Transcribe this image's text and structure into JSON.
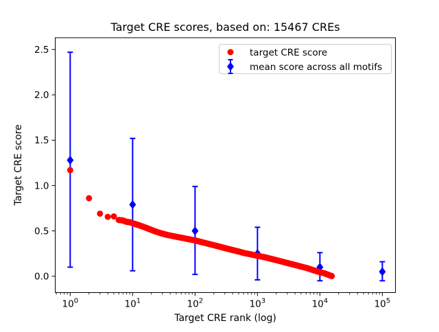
{
  "chart_data": {
    "type": "scatter",
    "title": "Target CRE scores, based on: 15467 CREs",
    "xlabel": "Target CRE rank (log)",
    "ylabel": "Target CRE score",
    "x_scale": "log",
    "xlim_log10": [
      -0.24,
      5.21
    ],
    "ylim": [
      -0.18,
      2.63
    ],
    "x_ticks": [
      1,
      10,
      100,
      1000,
      10000,
      100000
    ],
    "y_ticks": [
      0.0,
      0.5,
      1.0,
      1.5,
      2.0,
      2.5
    ],
    "grid": false,
    "legend": {
      "position": "upper right",
      "items": [
        {
          "label": "target CRE score",
          "marker": "circle",
          "color": "#ff0000"
        },
        {
          "label": "mean score across all motifs",
          "marker": "diamond-errorbar",
          "color": "#0000ff"
        }
      ]
    },
    "series": [
      {
        "name": "mean score across all motifs",
        "type": "errorbar",
        "marker": "diamond",
        "color": "#0000ff",
        "points": [
          {
            "x": 1,
            "y": 1.28,
            "lo": 0.1,
            "hi": 2.47
          },
          {
            "x": 10,
            "y": 0.79,
            "lo": 0.06,
            "hi": 1.52
          },
          {
            "x": 100,
            "y": 0.5,
            "lo": 0.02,
            "hi": 0.99
          },
          {
            "x": 1000,
            "y": 0.25,
            "lo": -0.04,
            "hi": 0.54
          },
          {
            "x": 10000,
            "y": 0.1,
            "lo": -0.05,
            "hi": 0.26
          },
          {
            "x": 100000,
            "y": 0.05,
            "lo": -0.05,
            "hi": 0.16
          }
        ]
      },
      {
        "name": "target CRE score",
        "type": "scatter",
        "marker": "circle",
        "color": "#ff0000",
        "band_from_rank": 6,
        "points": [
          [
            1,
            1.17
          ],
          [
            2,
            0.86
          ],
          [
            3,
            0.69
          ],
          [
            4,
            0.655
          ],
          [
            5,
            0.66
          ],
          [
            6,
            0.62
          ],
          [
            7,
            0.615
          ],
          [
            8,
            0.6
          ],
          [
            9,
            0.595
          ],
          [
            10,
            0.585
          ],
          [
            13,
            0.56
          ],
          [
            17,
            0.53
          ],
          [
            22,
            0.5
          ],
          [
            28,
            0.475
          ],
          [
            36,
            0.455
          ],
          [
            46,
            0.44
          ],
          [
            60,
            0.425
          ],
          [
            77,
            0.41
          ],
          [
            100,
            0.395
          ],
          [
            130,
            0.375
          ],
          [
            170,
            0.355
          ],
          [
            220,
            0.335
          ],
          [
            285,
            0.315
          ],
          [
            370,
            0.295
          ],
          [
            480,
            0.275
          ],
          [
            620,
            0.255
          ],
          [
            800,
            0.24
          ],
          [
            1000,
            0.225
          ],
          [
            1300,
            0.21
          ],
          [
            1700,
            0.19
          ],
          [
            2200,
            0.17
          ],
          [
            2850,
            0.15
          ],
          [
            3700,
            0.13
          ],
          [
            4800,
            0.11
          ],
          [
            6200,
            0.09
          ],
          [
            8000,
            0.065
          ],
          [
            10000,
            0.045
          ],
          [
            12000,
            0.03
          ],
          [
            13700,
            0.015
          ],
          [
            15467,
            0.002
          ]
        ]
      }
    ],
    "colors": {
      "red_series": "#ff0000",
      "blue_series": "#0000ff",
      "axes": "#000000",
      "legend_border": "#cccccc",
      "background": "#ffffff"
    }
  }
}
